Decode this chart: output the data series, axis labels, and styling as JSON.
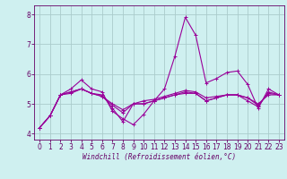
{
  "xlabel": "Windchill (Refroidissement éolien,°C)",
  "background_color": "#cff0f0",
  "grid_color": "#aacccc",
  "line_color": "#990099",
  "spine_color": "#660066",
  "ylim": [
    3.8,
    8.3
  ],
  "xlim": [
    -0.5,
    23.5
  ],
  "yticks": [
    4,
    5,
    6,
    7,
    8
  ],
  "xticks": [
    0,
    1,
    2,
    3,
    4,
    5,
    6,
    7,
    8,
    9,
    10,
    11,
    12,
    13,
    14,
    15,
    16,
    17,
    18,
    19,
    20,
    21,
    22,
    23
  ],
  "series": [
    [
      4.2,
      4.6,
      5.3,
      5.5,
      5.8,
      5.5,
      5.4,
      4.75,
      4.5,
      4.3,
      4.65,
      5.1,
      5.5,
      6.6,
      7.9,
      7.3,
      5.7,
      5.85,
      6.05,
      6.1,
      5.65,
      4.85,
      5.5,
      5.3
    ],
    [
      4.2,
      4.6,
      5.3,
      5.35,
      5.5,
      5.35,
      5.3,
      4.85,
      4.4,
      5.0,
      5.0,
      5.1,
      5.2,
      5.3,
      5.35,
      5.35,
      5.1,
      5.2,
      5.3,
      5.3,
      5.1,
      4.9,
      5.4,
      5.3
    ],
    [
      4.2,
      4.6,
      5.3,
      5.4,
      5.5,
      5.35,
      5.25,
      5.0,
      4.8,
      5.0,
      5.1,
      5.15,
      5.25,
      5.35,
      5.45,
      5.4,
      5.2,
      5.25,
      5.3,
      5.3,
      5.2,
      5.0,
      5.3,
      5.3
    ],
    [
      4.2,
      4.6,
      5.3,
      5.4,
      5.5,
      5.35,
      5.25,
      4.95,
      4.7,
      5.0,
      5.0,
      5.1,
      5.2,
      5.3,
      5.4,
      5.35,
      5.1,
      5.2,
      5.3,
      5.3,
      5.2,
      4.95,
      5.35,
      5.3
    ]
  ],
  "tick_fontsize": 5.5,
  "xlabel_fontsize": 5.5
}
